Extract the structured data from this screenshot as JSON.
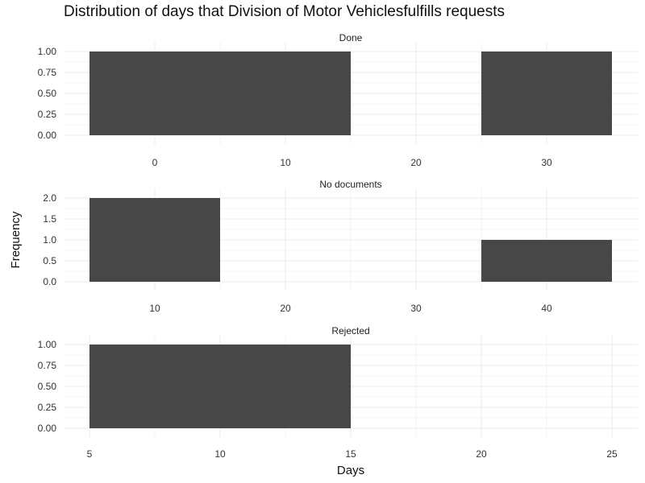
{
  "chart_data": {
    "type": "histogram",
    "title": "Distribution of days that Division of Motor Vehiclesfulfills requests",
    "xlabel": "Days",
    "ylabel": "Frequency",
    "grid": true,
    "facets": [
      {
        "label": "Done",
        "xlim": [
          -5,
          35
        ],
        "x_ticks": [
          0,
          10,
          20,
          30
        ],
        "x_minor": [
          5,
          15,
          25
        ],
        "ylim": [
          0,
          1
        ],
        "y_ticks": [
          "0.00",
          "0.25",
          "0.50",
          "0.75",
          "1.00"
        ],
        "bins": [
          {
            "start": -5,
            "end": 5,
            "count": 1
          },
          {
            "start": 5,
            "end": 15,
            "count": 1
          },
          {
            "start": 15,
            "end": 25,
            "count": 0
          },
          {
            "start": 25,
            "end": 35,
            "count": 1
          }
        ]
      },
      {
        "label": "No documents",
        "xlim": [
          5,
          45
        ],
        "x_ticks": [
          10,
          20,
          30,
          40
        ],
        "x_minor": [
          15,
          25,
          35
        ],
        "ylim": [
          0,
          2
        ],
        "y_ticks": [
          "0.0",
          "0.5",
          "1.0",
          "1.5",
          "2.0"
        ],
        "bins": [
          {
            "start": 5,
            "end": 15,
            "count": 2
          },
          {
            "start": 15,
            "end": 25,
            "count": 0
          },
          {
            "start": 25,
            "end": 35,
            "count": 0
          },
          {
            "start": 35,
            "end": 45,
            "count": 1
          }
        ]
      },
      {
        "label": "Rejected",
        "xlim": [
          5,
          25
        ],
        "x_ticks": [
          5,
          10,
          15,
          20,
          25
        ],
        "x_minor": [
          7.5,
          12.5,
          17.5,
          22.5
        ],
        "ylim": [
          0,
          1
        ],
        "y_ticks": [
          "0.00",
          "0.25",
          "0.50",
          "0.75",
          "1.00"
        ],
        "bins": [
          {
            "start": 5,
            "end": 10,
            "count": 1
          },
          {
            "start": 10,
            "end": 15,
            "count": 1
          }
        ]
      }
    ],
    "bar_color": "#474747",
    "grid_color": "#ebebeb"
  }
}
